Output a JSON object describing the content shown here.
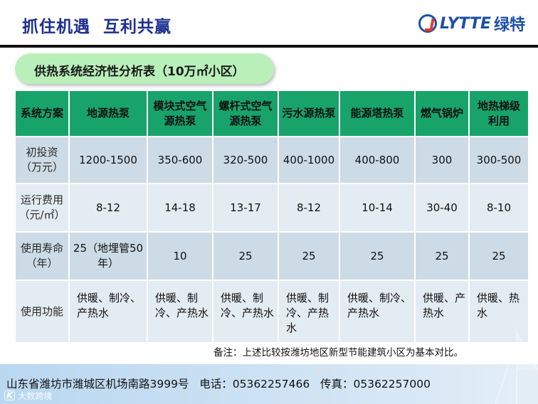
{
  "header": {
    "slogan": "抓住机遇  互利共赢",
    "logo_text": "LYTTE",
    "logo_cn": "绿特"
  },
  "subtitle": "供热系统经济性分析表（10万㎡小区）",
  "table": {
    "headers": [
      "系统方案",
      "地源热泵",
      "模块式空气源热泵",
      "螺杆式空气源热泵",
      "污水源热泵",
      "能源塔热泵",
      "燃气锅炉",
      "地热梯级利用"
    ],
    "rows": [
      {
        "label": "初投资（万元）",
        "values": [
          "1200-1500",
          "350-600",
          "320-500",
          "400-1000",
          "400-800",
          "300",
          "300-500"
        ]
      },
      {
        "label": "运行费用（元/㎡）",
        "values": [
          "8-12",
          "14-18",
          "13-17",
          "8-12",
          "10-14",
          "30-40",
          "8-10"
        ]
      },
      {
        "label": "使用寿命（年）",
        "values": [
          "25（地埋管50年）",
          "10",
          "25",
          "25",
          "25",
          "25",
          "25"
        ]
      },
      {
        "label": "使用功能",
        "values": [
          "供暖、制冷、产热水",
          "供暖、制冷、产热水",
          "供暖、制冷、产热水",
          "供暖、制冷、产热水",
          "供暖、制冷、产热水",
          "供暖、产热水",
          "供暖、热水"
        ]
      }
    ]
  },
  "footnote": "备注：上述比较按潍坊地区新型节能建筑小区为基本对比。",
  "footer": {
    "contact": "山东省潍坊市潍城区机场南路3999号   电话：05362257466   传真：05362257000",
    "watermark": "大数跨境",
    "watermark_logo": "K"
  }
}
